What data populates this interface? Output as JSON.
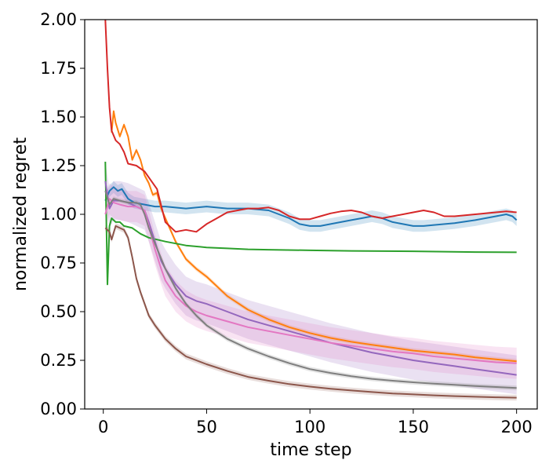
{
  "chart_data": {
    "type": "line",
    "title": "",
    "xlabel": "time step",
    "ylabel": "normalized regret",
    "xlim": [
      -9,
      210
    ],
    "ylim": [
      0,
      2.0
    ],
    "xticks": [
      0,
      50,
      100,
      150,
      200
    ],
    "yticks": [
      0.0,
      0.25,
      0.5,
      0.75,
      1.0,
      1.25,
      1.5,
      1.75,
      2.0
    ],
    "xtick_labels": [
      "0",
      "50",
      "100",
      "150",
      "200"
    ],
    "ytick_labels": [
      "0.00",
      "0.25",
      "0.50",
      "0.75",
      "1.00",
      "1.25",
      "1.50",
      "1.75",
      "2.00"
    ],
    "grid": false,
    "legend": "none",
    "series": [
      {
        "color": "#1f77b4",
        "band": 0.03,
        "points": [
          [
            1,
            1.07
          ],
          [
            3,
            1.12
          ],
          [
            5,
            1.14
          ],
          [
            7,
            1.12
          ],
          [
            9,
            1.13
          ],
          [
            12,
            1.08
          ],
          [
            15,
            1.06
          ],
          [
            20,
            1.05
          ],
          [
            25,
            1.04
          ],
          [
            30,
            1.04
          ],
          [
            40,
            1.03
          ],
          [
            50,
            1.04
          ],
          [
            60,
            1.03
          ],
          [
            70,
            1.03
          ],
          [
            80,
            1.02
          ],
          [
            90,
            0.98
          ],
          [
            95,
            0.95
          ],
          [
            100,
            0.94
          ],
          [
            105,
            0.94
          ],
          [
            110,
            0.95
          ],
          [
            115,
            0.96
          ],
          [
            120,
            0.97
          ],
          [
            125,
            0.98
          ],
          [
            130,
            0.99
          ],
          [
            135,
            0.98
          ],
          [
            140,
            0.96
          ],
          [
            145,
            0.95
          ],
          [
            150,
            0.94
          ],
          [
            155,
            0.94
          ],
          [
            160,
            0.945
          ],
          [
            170,
            0.955
          ],
          [
            180,
            0.97
          ],
          [
            190,
            0.99
          ],
          [
            195,
            1.0
          ],
          [
            198,
            0.99
          ],
          [
            200,
            0.97
          ]
        ]
      },
      {
        "color": "#ff7f0e",
        "band": 0.012,
        "points": [
          [
            4,
            1.42
          ],
          [
            5,
            1.53
          ],
          [
            6,
            1.47
          ],
          [
            8,
            1.4
          ],
          [
            10,
            1.46
          ],
          [
            12,
            1.4
          ],
          [
            14,
            1.28
          ],
          [
            16,
            1.33
          ],
          [
            18,
            1.28
          ],
          [
            20,
            1.2
          ],
          [
            22,
            1.16
          ],
          [
            24,
            1.1
          ],
          [
            26,
            1.11
          ],
          [
            28,
            1.03
          ],
          [
            30,
            0.98
          ],
          [
            35,
            0.86
          ],
          [
            40,
            0.77
          ],
          [
            45,
            0.72
          ],
          [
            50,
            0.68
          ],
          [
            60,
            0.58
          ],
          [
            70,
            0.51
          ],
          [
            80,
            0.46
          ],
          [
            90,
            0.42
          ],
          [
            100,
            0.39
          ],
          [
            110,
            0.365
          ],
          [
            120,
            0.345
          ],
          [
            130,
            0.33
          ],
          [
            140,
            0.315
          ],
          [
            150,
            0.3
          ],
          [
            160,
            0.29
          ],
          [
            170,
            0.28
          ],
          [
            180,
            0.265
          ],
          [
            190,
            0.255
          ],
          [
            200,
            0.245
          ]
        ]
      },
      {
        "color": "#2ca02c",
        "band": 0.0,
        "points": [
          [
            1,
            1.27
          ],
          [
            2,
            0.64
          ],
          [
            3,
            0.94
          ],
          [
            4,
            0.98
          ],
          [
            6,
            0.96
          ],
          [
            8,
            0.96
          ],
          [
            10,
            0.94
          ],
          [
            14,
            0.93
          ],
          [
            18,
            0.9
          ],
          [
            22,
            0.88
          ],
          [
            26,
            0.87
          ],
          [
            30,
            0.86
          ],
          [
            40,
            0.84
          ],
          [
            50,
            0.83
          ],
          [
            60,
            0.825
          ],
          [
            70,
            0.82
          ],
          [
            80,
            0.818
          ],
          [
            100,
            0.815
          ],
          [
            120,
            0.812
          ],
          [
            150,
            0.81
          ],
          [
            180,
            0.806
          ],
          [
            200,
            0.805
          ]
        ]
      },
      {
        "color": "#d62728",
        "band": 0.0,
        "points": [
          [
            1,
            2.0
          ],
          [
            2,
            1.75
          ],
          [
            3,
            1.55
          ],
          [
            4,
            1.43
          ],
          [
            6,
            1.38
          ],
          [
            8,
            1.36
          ],
          [
            10,
            1.32
          ],
          [
            12,
            1.26
          ],
          [
            16,
            1.25
          ],
          [
            20,
            1.22
          ],
          [
            24,
            1.16
          ],
          [
            26,
            1.13
          ],
          [
            30,
            0.96
          ],
          [
            35,
            0.91
          ],
          [
            40,
            0.92
          ],
          [
            45,
            0.91
          ],
          [
            50,
            0.95
          ],
          [
            55,
            0.98
          ],
          [
            60,
            1.01
          ],
          [
            65,
            1.02
          ],
          [
            70,
            1.03
          ],
          [
            75,
            1.03
          ],
          [
            80,
            1.035
          ],
          [
            85,
            1.02
          ],
          [
            90,
            0.99
          ],
          [
            95,
            0.975
          ],
          [
            100,
            0.975
          ],
          [
            105,
            0.99
          ],
          [
            110,
            1.005
          ],
          [
            115,
            1.015
          ],
          [
            120,
            1.02
          ],
          [
            125,
            1.01
          ],
          [
            130,
            0.99
          ],
          [
            135,
            0.98
          ],
          [
            140,
            0.99
          ],
          [
            150,
            1.01
          ],
          [
            155,
            1.02
          ],
          [
            160,
            1.01
          ],
          [
            165,
            0.99
          ],
          [
            170,
            0.99
          ],
          [
            180,
            1.0
          ],
          [
            190,
            1.01
          ],
          [
            195,
            1.015
          ],
          [
            200,
            1.01
          ]
        ]
      },
      {
        "color": "#9467bd",
        "band": 0.1,
        "points": [
          [
            1,
            1.17
          ],
          [
            3,
            1.03
          ],
          [
            5,
            1.07
          ],
          [
            8,
            1.07
          ],
          [
            12,
            1.06
          ],
          [
            16,
            1.04
          ],
          [
            20,
            1.02
          ],
          [
            22,
            0.96
          ],
          [
            25,
            0.86
          ],
          [
            28,
            0.76
          ],
          [
            30,
            0.72
          ],
          [
            35,
            0.64
          ],
          [
            40,
            0.58
          ],
          [
            45,
            0.555
          ],
          [
            50,
            0.54
          ],
          [
            60,
            0.5
          ],
          [
            70,
            0.46
          ],
          [
            80,
            0.43
          ],
          [
            90,
            0.4
          ],
          [
            100,
            0.37
          ],
          [
            110,
            0.34
          ],
          [
            120,
            0.315
          ],
          [
            130,
            0.29
          ],
          [
            140,
            0.27
          ],
          [
            150,
            0.25
          ],
          [
            160,
            0.235
          ],
          [
            170,
            0.22
          ],
          [
            180,
            0.205
          ],
          [
            190,
            0.19
          ],
          [
            200,
            0.175
          ]
        ]
      },
      {
        "color": "#8c564b",
        "band": 0.015,
        "points": [
          [
            1,
            0.93
          ],
          [
            3,
            0.91
          ],
          [
            4,
            0.87
          ],
          [
            6,
            0.94
          ],
          [
            8,
            0.93
          ],
          [
            10,
            0.92
          ],
          [
            12,
            0.88
          ],
          [
            14,
            0.78
          ],
          [
            16,
            0.67
          ],
          [
            18,
            0.6
          ],
          [
            20,
            0.54
          ],
          [
            22,
            0.48
          ],
          [
            25,
            0.43
          ],
          [
            30,
            0.36
          ],
          [
            35,
            0.31
          ],
          [
            40,
            0.27
          ],
          [
            45,
            0.25
          ],
          [
            50,
            0.23
          ],
          [
            60,
            0.195
          ],
          [
            70,
            0.165
          ],
          [
            80,
            0.145
          ],
          [
            90,
            0.128
          ],
          [
            100,
            0.115
          ],
          [
            110,
            0.104
          ],
          [
            120,
            0.095
          ],
          [
            130,
            0.087
          ],
          [
            140,
            0.08
          ],
          [
            150,
            0.075
          ],
          [
            160,
            0.07
          ],
          [
            170,
            0.066
          ],
          [
            180,
            0.063
          ],
          [
            190,
            0.06
          ],
          [
            200,
            0.058
          ]
        ]
      },
      {
        "color": "#e377c2",
        "band": 0.08,
        "points": [
          [
            1,
            1.0
          ],
          [
            3,
            1.08
          ],
          [
            5,
            1.06
          ],
          [
            8,
            1.05
          ],
          [
            12,
            1.04
          ],
          [
            16,
            1.04
          ],
          [
            20,
            1.02
          ],
          [
            22,
            0.94
          ],
          [
            25,
            0.82
          ],
          [
            28,
            0.72
          ],
          [
            30,
            0.66
          ],
          [
            35,
            0.58
          ],
          [
            40,
            0.53
          ],
          [
            45,
            0.5
          ],
          [
            50,
            0.48
          ],
          [
            60,
            0.45
          ],
          [
            70,
            0.42
          ],
          [
            80,
            0.4
          ],
          [
            90,
            0.38
          ],
          [
            100,
            0.36
          ],
          [
            110,
            0.34
          ],
          [
            120,
            0.325
          ],
          [
            130,
            0.31
          ],
          [
            140,
            0.295
          ],
          [
            150,
            0.285
          ],
          [
            160,
            0.27
          ],
          [
            170,
            0.26
          ],
          [
            180,
            0.25
          ],
          [
            190,
            0.24
          ],
          [
            200,
            0.235
          ]
        ]
      },
      {
        "color": "#7f7f7f",
        "band": 0.012,
        "points": [
          [
            1,
            1.12
          ],
          [
            3,
            1.05
          ],
          [
            5,
            1.08
          ],
          [
            8,
            1.07
          ],
          [
            12,
            1.06
          ],
          [
            16,
            1.06
          ],
          [
            18,
            1.05
          ],
          [
            20,
            1.0
          ],
          [
            22,
            0.93
          ],
          [
            25,
            0.85
          ],
          [
            30,
            0.72
          ],
          [
            35,
            0.62
          ],
          [
            40,
            0.54
          ],
          [
            45,
            0.48
          ],
          [
            50,
            0.43
          ],
          [
            60,
            0.36
          ],
          [
            70,
            0.31
          ],
          [
            80,
            0.27
          ],
          [
            90,
            0.235
          ],
          [
            100,
            0.205
          ],
          [
            110,
            0.185
          ],
          [
            120,
            0.168
          ],
          [
            130,
            0.155
          ],
          [
            140,
            0.145
          ],
          [
            150,
            0.137
          ],
          [
            160,
            0.13
          ],
          [
            170,
            0.124
          ],
          [
            180,
            0.118
          ],
          [
            190,
            0.113
          ],
          [
            200,
            0.108
          ]
        ]
      }
    ]
  }
}
